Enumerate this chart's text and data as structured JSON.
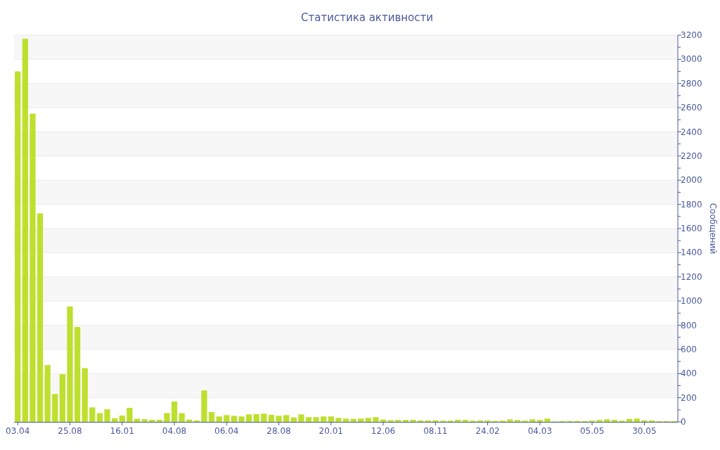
{
  "chart_data": {
    "type": "bar",
    "title": "Статистика активности",
    "ylabel": "Сообщений",
    "categories": [
      "03.04",
      null,
      null,
      null,
      null,
      null,
      null,
      "25.08",
      null,
      null,
      null,
      null,
      null,
      null,
      "16.01",
      null,
      null,
      null,
      null,
      null,
      null,
      "04.08",
      null,
      null,
      null,
      null,
      null,
      null,
      "06.04",
      null,
      null,
      null,
      null,
      null,
      null,
      "28.08",
      null,
      null,
      null,
      null,
      null,
      null,
      "20.01",
      null,
      null,
      null,
      null,
      null,
      null,
      "12.06",
      null,
      null,
      null,
      null,
      null,
      null,
      "08.11",
      null,
      null,
      null,
      null,
      null,
      null,
      "24.02",
      null,
      null,
      null,
      null,
      null,
      null,
      "04.03",
      null,
      null,
      null,
      null,
      null,
      null,
      "05.05",
      null,
      null,
      null,
      null,
      null,
      null,
      "30.05",
      null,
      null,
      null,
      null
    ],
    "values": [
      2900,
      3170,
      2550,
      1725,
      470,
      230,
      395,
      955,
      785,
      445,
      120,
      73,
      104,
      30,
      52,
      116,
      26,
      22,
      17,
      17,
      73,
      168,
      72,
      19,
      12,
      260,
      81,
      45,
      56,
      50,
      45,
      62,
      64,
      68,
      58,
      50,
      56,
      37,
      62,
      39,
      39,
      45,
      45,
      33,
      27,
      25,
      27,
      33,
      39,
      19,
      14,
      16,
      16,
      17,
      12,
      12,
      12,
      10,
      10,
      17,
      16,
      10,
      12,
      12,
      8,
      10,
      21,
      16,
      10,
      21,
      16,
      27,
      4,
      6,
      8,
      8,
      6,
      10,
      16,
      21,
      17,
      10,
      25,
      27,
      12,
      12,
      6,
      6,
      6
    ],
    "color": "#bde02e",
    "ylim": [
      0,
      3200
    ],
    "yticks": [
      0,
      {
        "value": 100,
        "label": null
      },
      200,
      {
        "value": 300,
        "label": null
      },
      400,
      {
        "value": 500,
        "label": null
      },
      600,
      {
        "value": 700,
        "label": null
      },
      800,
      {
        "value": 900,
        "label": null
      },
      1000,
      {
        "value": 1100,
        "label": null
      },
      1200,
      {
        "value": 1300,
        "label": null
      },
      1400,
      {
        "value": 1500,
        "label": null
      },
      1600,
      {
        "value": 1700,
        "label": null
      },
      1800,
      {
        "value": 1900,
        "label": null
      },
      2000,
      {
        "value": 2100,
        "label": null
      },
      2200,
      {
        "value": 2300,
        "label": null
      },
      2400,
      {
        "value": 2500,
        "label": null
      },
      2600,
      {
        "value": 2700,
        "label": null
      },
      2800,
      {
        "value": 2900,
        "label": null
      },
      3000,
      {
        "value": 3100,
        "label": null
      },
      3200
    ],
    "grid": "y"
  }
}
